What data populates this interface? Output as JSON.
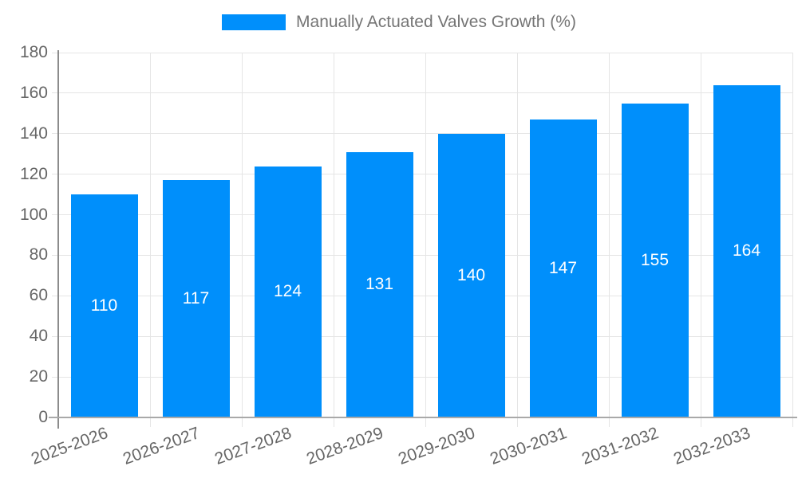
{
  "legend": {
    "label": "Manually Actuated Valves Growth (%)"
  },
  "colors": {
    "bar": "#008FFB",
    "grid": "#E5E5E5",
    "axis_y": "#8C8C8C",
    "axis_x": "#A9A9A9",
    "tick_label": "#666666",
    "legend_label": "#757575",
    "bar_value_label": "#FFFFFF",
    "background": "#FFFFFF"
  },
  "chart_data": {
    "type": "bar",
    "title": "",
    "xlabel": "",
    "ylabel": "",
    "categories": [
      "2025-2026",
      "2026-2027",
      "2027-2028",
      "2028-2029",
      "2029-2030",
      "2030-2031",
      "2031-2032",
      "2032-2033"
    ],
    "values": [
      110,
      117,
      124,
      131,
      140,
      147,
      155,
      164
    ],
    "series_name": "Manually Actuated Valves Growth (%)",
    "ylim": [
      0,
      180
    ],
    "yticks": [
      0,
      20,
      40,
      60,
      80,
      100,
      120,
      140,
      160,
      180
    ],
    "grid": true,
    "legend_position": "top",
    "bar_value_labels": true,
    "xtick_rotation_deg": -20
  }
}
